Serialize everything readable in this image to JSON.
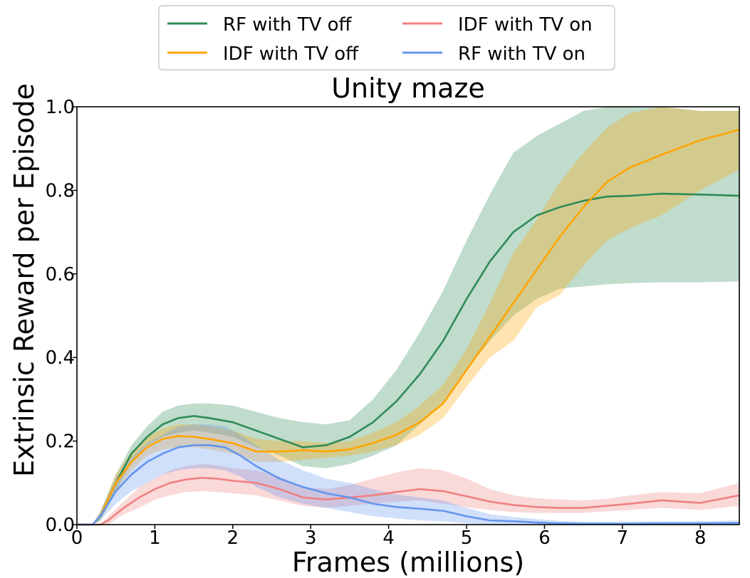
{
  "chart_data": {
    "type": "line",
    "title": "Unity maze",
    "xlabel": "Frames (millions)",
    "ylabel": "Extrinsic Reward per Episode",
    "xlim": [
      0,
      8.5
    ],
    "ylim": [
      0,
      1.0
    ],
    "xticks": [
      0,
      1,
      2,
      3,
      4,
      5,
      6,
      7,
      8
    ],
    "xtick_labels": [
      "0",
      "1",
      "2",
      "3",
      "4",
      "5",
      "6",
      "7",
      "8"
    ],
    "yticks": [
      0.0,
      0.2,
      0.4,
      0.6,
      0.8,
      1.0
    ],
    "ytick_labels": [
      "0.0",
      "0.2",
      "0.4",
      "0.6",
      "0.8",
      "1.0"
    ],
    "grid": false,
    "legend_position": "top-center, outside plot, two columns",
    "series": [
      {
        "name": "RF with TV off",
        "color": "#2e8b57",
        "x": [
          0,
          0.2,
          0.3,
          0.5,
          0.7,
          0.9,
          1.1,
          1.3,
          1.5,
          1.7,
          2.0,
          2.3,
          2.6,
          2.9,
          3.2,
          3.5,
          3.8,
          4.1,
          4.4,
          4.7,
          5.0,
          5.3,
          5.6,
          5.9,
          6.2,
          6.5,
          6.8,
          7.1,
          7.5,
          8.0,
          8.5
        ],
        "y": [
          0,
          0,
          0.02,
          0.1,
          0.17,
          0.21,
          0.24,
          0.255,
          0.26,
          0.255,
          0.245,
          0.225,
          0.205,
          0.185,
          0.19,
          0.21,
          0.245,
          0.295,
          0.36,
          0.44,
          0.54,
          0.63,
          0.7,
          0.74,
          0.76,
          0.775,
          0.785,
          0.787,
          0.792,
          0.79,
          0.787
        ],
        "lower": [
          0,
          0,
          0.01,
          0.08,
          0.15,
          0.19,
          0.21,
          0.22,
          0.225,
          0.22,
          0.21,
          0.185,
          0.165,
          0.14,
          0.135,
          0.145,
          0.165,
          0.19,
          0.24,
          0.29,
          0.37,
          0.44,
          0.5,
          0.54,
          0.565,
          0.57,
          0.575,
          0.578,
          0.58,
          0.58,
          0.582
        ],
        "upper": [
          0,
          0,
          0.03,
          0.12,
          0.19,
          0.235,
          0.27,
          0.285,
          0.29,
          0.29,
          0.285,
          0.27,
          0.255,
          0.245,
          0.24,
          0.25,
          0.3,
          0.37,
          0.46,
          0.56,
          0.68,
          0.79,
          0.89,
          0.93,
          0.96,
          0.99,
          1.0,
          1.0,
          1.0,
          0.99,
          0.99
        ]
      },
      {
        "name": "IDF with TV off",
        "color": "#ffa500",
        "x": [
          0,
          0.2,
          0.3,
          0.5,
          0.7,
          0.9,
          1.1,
          1.3,
          1.5,
          1.7,
          2.0,
          2.3,
          2.6,
          2.9,
          3.2,
          3.5,
          3.8,
          4.1,
          4.4,
          4.7,
          5.0,
          5.3,
          5.6,
          5.9,
          6.2,
          6.5,
          6.8,
          7.1,
          7.5,
          8.0,
          8.5
        ],
        "y": [
          0,
          0,
          0.02,
          0.1,
          0.15,
          0.185,
          0.205,
          0.212,
          0.21,
          0.205,
          0.195,
          0.175,
          0.175,
          0.178,
          0.175,
          0.18,
          0.195,
          0.215,
          0.245,
          0.29,
          0.37,
          0.45,
          0.53,
          0.61,
          0.69,
          0.76,
          0.82,
          0.855,
          0.885,
          0.92,
          0.945
        ],
        "lower": [
          0,
          0,
          0.01,
          0.08,
          0.13,
          0.165,
          0.18,
          0.185,
          0.185,
          0.18,
          0.17,
          0.15,
          0.15,
          0.155,
          0.16,
          0.165,
          0.175,
          0.19,
          0.215,
          0.255,
          0.33,
          0.4,
          0.44,
          0.52,
          0.55,
          0.62,
          0.68,
          0.71,
          0.74,
          0.8,
          0.85
        ],
        "upper": [
          0,
          0,
          0.03,
          0.12,
          0.175,
          0.21,
          0.23,
          0.24,
          0.24,
          0.235,
          0.225,
          0.205,
          0.2,
          0.2,
          0.195,
          0.2,
          0.22,
          0.245,
          0.285,
          0.335,
          0.42,
          0.53,
          0.65,
          0.73,
          0.82,
          0.89,
          0.95,
          0.985,
          1.0,
          0.99,
          0.99
        ]
      },
      {
        "name": "IDF with TV on",
        "color": "#f08080",
        "x": [
          0,
          0.3,
          0.4,
          0.6,
          0.8,
          1.0,
          1.2,
          1.4,
          1.6,
          1.8,
          2.0,
          2.3,
          2.6,
          2.9,
          3.2,
          3.5,
          3.8,
          4.1,
          4.4,
          4.7,
          5.0,
          5.3,
          5.6,
          5.9,
          6.2,
          6.5,
          6.8,
          7.1,
          7.5,
          8.0,
          8.5
        ],
        "y": [
          0,
          0,
          0.01,
          0.04,
          0.065,
          0.085,
          0.1,
          0.108,
          0.112,
          0.11,
          0.105,
          0.1,
          0.085,
          0.065,
          0.06,
          0.065,
          0.07,
          0.078,
          0.085,
          0.08,
          0.068,
          0.055,
          0.047,
          0.042,
          0.04,
          0.04,
          0.045,
          0.05,
          0.058,
          0.052,
          0.07
        ],
        "lower": [
          0,
          0,
          0.0,
          0.025,
          0.04,
          0.06,
          0.07,
          0.078,
          0.08,
          0.078,
          0.075,
          0.07,
          0.058,
          0.045,
          0.04,
          0.045,
          0.05,
          0.055,
          0.058,
          0.05,
          0.042,
          0.035,
          0.03,
          0.028,
          0.028,
          0.028,
          0.032,
          0.035,
          0.04,
          0.035,
          0.045
        ],
        "upper": [
          0,
          0,
          0.02,
          0.055,
          0.09,
          0.11,
          0.13,
          0.14,
          0.145,
          0.142,
          0.135,
          0.13,
          0.115,
          0.09,
          0.085,
          0.095,
          0.11,
          0.125,
          0.135,
          0.13,
          0.11,
          0.085,
          0.07,
          0.063,
          0.06,
          0.058,
          0.062,
          0.07,
          0.078,
          0.075,
          0.1
        ]
      },
      {
        "name": "RF with TV on",
        "color": "#6495ed",
        "x": [
          0,
          0.2,
          0.3,
          0.5,
          0.7,
          0.9,
          1.1,
          1.3,
          1.5,
          1.7,
          1.9,
          2.1,
          2.3,
          2.6,
          2.9,
          3.2,
          3.5,
          3.8,
          4.1,
          4.4,
          4.7,
          5.0,
          5.3,
          5.6,
          5.9,
          6.2,
          6.5,
          7.0,
          7.5,
          8.0,
          8.5
        ],
        "y": [
          0,
          0,
          0.02,
          0.08,
          0.12,
          0.15,
          0.17,
          0.185,
          0.19,
          0.19,
          0.185,
          0.165,
          0.14,
          0.11,
          0.09,
          0.075,
          0.065,
          0.05,
          0.042,
          0.038,
          0.033,
          0.02,
          0.01,
          0.008,
          0.005,
          0.003,
          0.002,
          0.002,
          0.003,
          0.003,
          0.004
        ],
        "lower": [
          0,
          0,
          0.01,
          0.05,
          0.08,
          0.1,
          0.12,
          0.13,
          0.135,
          0.135,
          0.13,
          0.115,
          0.09,
          0.065,
          0.05,
          0.04,
          0.03,
          0.02,
          0.015,
          0.01,
          0.008,
          0.003,
          0.0,
          0.0,
          0.0,
          0.0,
          0.0,
          0.0,
          0.0,
          0.0,
          0.0
        ],
        "upper": [
          0,
          0,
          0.03,
          0.11,
          0.16,
          0.195,
          0.215,
          0.235,
          0.24,
          0.24,
          0.235,
          0.215,
          0.19,
          0.155,
          0.13,
          0.11,
          0.1,
          0.085,
          0.072,
          0.065,
          0.058,
          0.04,
          0.025,
          0.018,
          0.013,
          0.009,
          0.007,
          0.007,
          0.008,
          0.008,
          0.01
        ]
      }
    ]
  }
}
